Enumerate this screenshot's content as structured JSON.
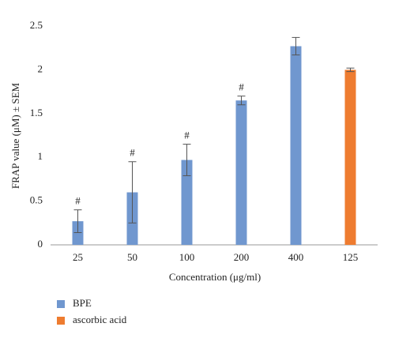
{
  "chart_data": {
    "type": "bar",
    "y_label": "FRAP value (μM) ± SEM",
    "x_label": "Concentration (μg/ml)",
    "categories": [
      "25",
      "50",
      "100",
      "200",
      "400",
      "125"
    ],
    "series": [
      {
        "name": "BPE",
        "color": "#7097cf",
        "values": [
          0.27,
          0.6,
          0.97,
          1.65,
          2.27,
          null
        ],
        "errors": [
          0.13,
          0.35,
          0.18,
          0.05,
          0.1,
          null
        ]
      },
      {
        "name": "ascorbic acid",
        "color": "#ee7c30",
        "values": [
          null,
          null,
          null,
          null,
          null,
          2.0
        ],
        "errors": [
          null,
          null,
          null,
          null,
          null,
          0.02
        ]
      }
    ],
    "annotations": [
      "#",
      "#",
      "#",
      "#",
      null,
      null
    ],
    "ylim": [
      0,
      2.5
    ],
    "yticks": [
      0,
      0.5,
      1,
      1.5,
      2,
      2.5
    ],
    "grid": false
  }
}
